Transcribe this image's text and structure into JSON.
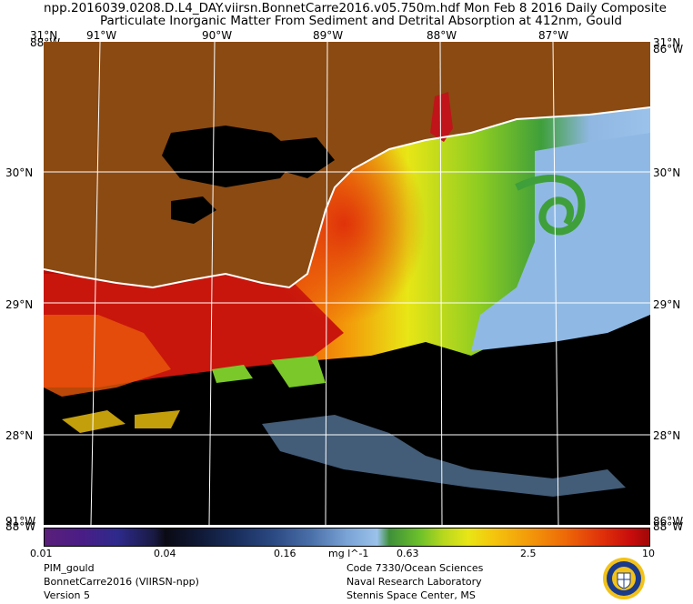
{
  "header": {
    "line1": "npp.2016039.0208.D.L4_DAY.viirsn.BonnetCarre2016.v05.750m.hdf    Mon Feb  8 2016 Daily Composite",
    "line2": "Particulate Inorganic Matter From Sediment and Detrital Absorption at 412nm, Gould"
  },
  "map": {
    "lon_labels": [
      "91°W",
      "90°W",
      "89°W",
      "88°W",
      "87°W"
    ],
    "lat_labels": [
      "30°N",
      "29°N",
      "28°N"
    ],
    "corner_top_left": "31°N",
    "corner_top_left_overlap": "88°W",
    "corner_top_right": "31°N",
    "corner_top_right_overlap": "86°W",
    "corner_bottom_left": "91°W",
    "corner_bottom_left_overlap": "88°W",
    "corner_bottom_right": "86°W",
    "corner_bottom_right_overlap": "88°W",
    "colors": {
      "land": "#8a4a12",
      "nodata": "#000000",
      "coast": "#ffffff",
      "grid": "#ffffff"
    }
  },
  "colorbar": {
    "tick_labels": [
      "0.01",
      "0.04",
      "0.16",
      "0.63",
      "2.5",
      "10"
    ],
    "unit": "mg l^-1",
    "scale": "log"
  },
  "footer": {
    "left": [
      "PIM_gould",
      "BonnetCarre2016 (VIIRSN-npp)",
      "Version 5"
    ],
    "right": [
      "Code 7330/Ocean Sciences",
      "Naval Research Laboratory",
      "Stennis Space Center, MS"
    ],
    "seal_icon": "nrl-seal-icon"
  }
}
